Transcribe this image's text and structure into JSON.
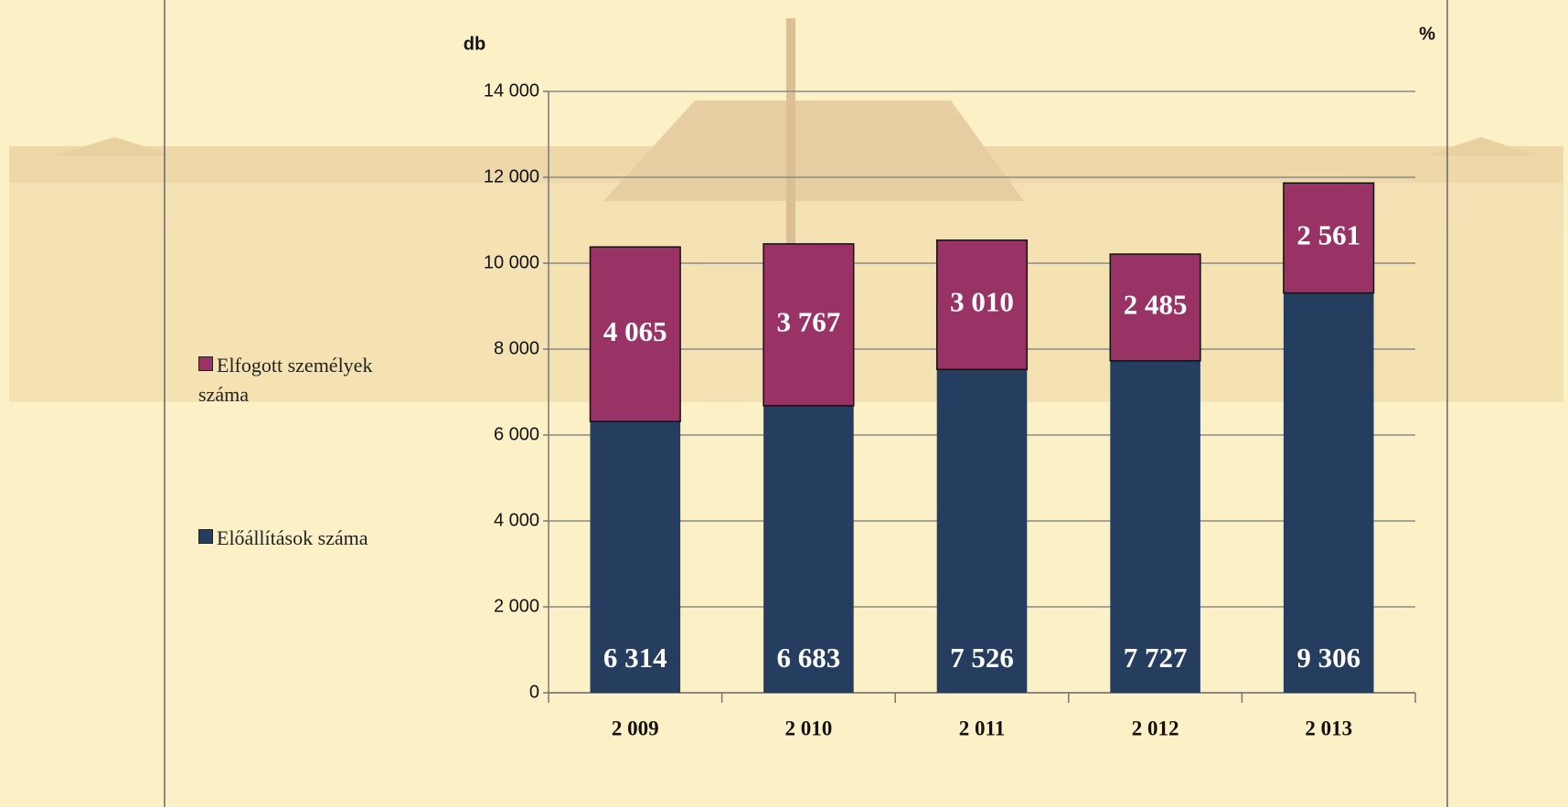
{
  "chart_data": {
    "type": "stacked_bar",
    "y_label": "db",
    "y2_label": "%",
    "categories": [
      "2 009",
      "2 010",
      "2 011",
      "2 012",
      "2 013"
    ],
    "series": [
      {
        "name": "Előállítások száma",
        "color": "#253d5e",
        "values": [
          6314,
          6683,
          7526,
          7727,
          9306
        ],
        "value_labels": [
          "6 314",
          "6 683",
          "7 526",
          "7 727",
          "9 306"
        ]
      },
      {
        "name": "Elfogott személyek száma",
        "color": "#993366",
        "values": [
          4065,
          3767,
          3010,
          2485,
          2561
        ],
        "value_labels": [
          "4 065",
          "3 767",
          "3 010",
          "2 485",
          "2 561"
        ]
      }
    ],
    "ylim": [
      0,
      14000
    ],
    "yticks": [
      0,
      {
        "value": 2000,
        "label": "2 000"
      },
      {
        "value": 4000,
        "label": "4 000"
      },
      {
        "value": 6000,
        "label": "6 000"
      },
      {
        "value": 8000,
        "label": "8 000"
      },
      {
        "value": 10000,
        "label": "10 000"
      },
      {
        "value": 12000,
        "label": "12 000"
      },
      {
        "value": 14000,
        "label": "14 000"
      }
    ],
    "grid": true,
    "legend": "left"
  }
}
